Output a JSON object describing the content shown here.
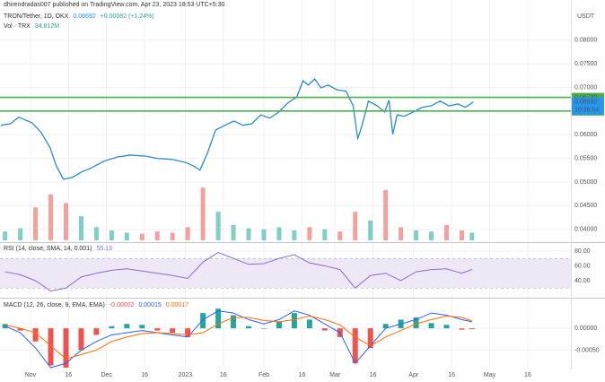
{
  "publisher": "dhirendradas007 published on TradingView.com, Apr 23, 2023 18:53 UTC+5:30",
  "chart_data": [
    {
      "type": "line",
      "title": "TRON/Tether, 1D, OKX",
      "currency": "USDT",
      "color": "#2a8bc7",
      "last": {
        "value": 0.06692,
        "label": "0.06692"
      },
      "change_label": "+0.00082 (+1.24%)",
      "countdown": "10:36:04",
      "x": [
        -11.7,
        -8,
        -4.6,
        0.7,
        4.2,
        7.8,
        10.2,
        13,
        16.6,
        20,
        23.7,
        29,
        34.3,
        39.6,
        45,
        50,
        55.5,
        60.8,
        64.3,
        66.8,
        69.6,
        73,
        76.7,
        80.2,
        83.7,
        87.2,
        90.8,
        94.3,
        97.9,
        101.4,
        105,
        107.4,
        109.5,
        112,
        114.5,
        117.3,
        120.8,
        124.4,
        127.2,
        129,
        130.7,
        133.2,
        136.7,
        139.6,
        141.3,
        142.8,
        144.5,
        147.3,
        150.9,
        154.4,
        157.9,
        161.5,
        165,
        168.5,
        171.4,
        174.6
      ],
      "values": [
        0.062,
        0.0623,
        0.0637,
        0.0625,
        0.0605,
        0.0572,
        0.0534,
        0.0506,
        0.051,
        0.0521,
        0.0529,
        0.0544,
        0.0553,
        0.0557,
        0.0555,
        0.055,
        0.0548,
        0.0542,
        0.0534,
        0.0525,
        0.0559,
        0.061,
        0.062,
        0.0629,
        0.062,
        0.0623,
        0.0642,
        0.0635,
        0.0648,
        0.0667,
        0.068,
        0.0714,
        0.0705,
        0.0718,
        0.0699,
        0.0705,
        0.0695,
        0.0692,
        0.0661,
        0.0591,
        0.062,
        0.0671,
        0.0661,
        0.0648,
        0.0673,
        0.0601,
        0.0642,
        0.0639,
        0.0648,
        0.0658,
        0.0661,
        0.0671,
        0.0661,
        0.0665,
        0.0658,
        0.06692
      ],
      "xlim": [
        -12,
        213
      ],
      "ylim": [
        0.0373,
        0.0862
      ],
      "yticks": [
        {
          "value": 0.08,
          "label": "0.08000"
        },
        {
          "value": 0.075,
          "label": "0.07500"
        },
        {
          "value": 0.07,
          "label": "0.07000"
        },
        {
          "value": 0.06,
          "label": "0.06000"
        },
        {
          "value": 0.055,
          "label": "0.05500"
        },
        {
          "value": 0.05,
          "label": "0.05000"
        },
        {
          "value": 0.045,
          "label": "0.04500"
        },
        {
          "value": 0.04,
          "label": "0.04000"
        }
      ],
      "hlines": [
        {
          "value": 0.0679,
          "label": "0.06790",
          "color": "#4caf50"
        },
        {
          "value": 0.065,
          "label": "0.06500",
          "color": "#4caf50"
        }
      ],
      "grid": true
    },
    {
      "type": "bar",
      "title": "Vol · TRX",
      "last_label": "34.812M",
      "up_color": "#7fcfc6",
      "down_color": "#f4a09c",
      "x": [
        -10,
        -4,
        2,
        8,
        14,
        20,
        26,
        32,
        38,
        44,
        50,
        56,
        62,
        68,
        74,
        80,
        86,
        92,
        98,
        104,
        110,
        116,
        122,
        128,
        134,
        140,
        146,
        152,
        158,
        164,
        170,
        174
      ],
      "values": [
        40,
        55,
        150,
        210,
        170,
        110,
        60,
        45,
        35,
        30,
        40,
        35,
        60,
        240,
        130,
        70,
        55,
        50,
        60,
        45,
        60,
        50,
        40,
        130,
        90,
        230,
        60,
        45,
        40,
        70,
        45,
        34.812
      ],
      "xlim": [
        -12,
        213
      ],
      "ylim": [
        0,
        360
      ]
    },
    {
      "type": "line",
      "title": "RSI (14, close, SMA, 14, 0.001)",
      "color": "#8e6cc9",
      "band": [
        30,
        70
      ],
      "band_color": "#ede7f6",
      "x": [
        -10,
        -4,
        2,
        8,
        14,
        20,
        26,
        32,
        38,
        44,
        50,
        56,
        62,
        68,
        74,
        80,
        86,
        92,
        98,
        104,
        110,
        116,
        122,
        128,
        134,
        140,
        146,
        152,
        158,
        164,
        170,
        174
      ],
      "values": [
        52,
        48,
        40,
        26,
        30,
        45,
        50,
        54,
        56,
        53,
        50,
        47,
        43,
        65,
        78,
        70,
        62,
        63,
        70,
        75,
        64,
        60,
        55,
        30,
        47,
        50,
        40,
        52,
        55,
        56,
        50,
        55.13
      ],
      "xlim": [
        -12,
        213
      ],
      "ylim": [
        17,
        92
      ],
      "yticks": [
        {
          "value": 80,
          "label": "80.00"
        },
        {
          "value": 60,
          "label": "60.00"
        },
        {
          "value": 40,
          "label": "40.00"
        }
      ]
    },
    {
      "type": "macd",
      "title": "MACD (12, 26, close, 9, EMA, EMA)",
      "pos_color": "#26a69a",
      "neg_color": "#ef5350",
      "x": [
        -10,
        -4,
        2,
        8,
        14,
        20,
        26,
        32,
        38,
        44,
        50,
        56,
        62,
        68,
        74,
        80,
        86,
        92,
        98,
        104,
        110,
        116,
        122,
        128,
        134,
        140,
        146,
        152,
        158,
        164,
        170,
        174
      ],
      "values": [
        0.0001,
        -5e-05,
        -0.0003,
        -0.00085,
        -0.0009,
        -0.0005,
        -0.00015,
        5e-05,
        0.0001,
        8e-05,
        -5e-05,
        -0.0001,
        -0.0002,
        0.00035,
        0.00045,
        0.0003,
        5e-05,
        0,
        0.00015,
        0.00035,
        0.0002,
        -5e-05,
        -0.0002,
        -0.0008,
        -0.00045,
        0.0001,
        0.0002,
        0.00025,
        0.00012,
        8e-05,
        -3e-05,
        -2e-05
      ],
      "series": [
        {
          "color": "#2962ff",
          "values": [
            5e-05,
            -0.0001,
            -0.00045,
            -0.0009,
            -0.0008,
            -0.0005,
            -0.0003,
            -0.00015,
            -0.0001,
            -5e-05,
            -0.0001,
            -0.00015,
            -0.0002,
            0.0002,
            0.0004,
            0.00035,
            0.0002,
            0.0001,
            0.0002,
            0.0004,
            0.0003,
            0.0001,
            -0.0001,
            -0.0008,
            -0.0004,
            0,
            0.0001,
            0.0002,
            0.00035,
            0.0003,
            0.0002,
            0.00015
          ]
        },
        {
          "color": "#ff6d00",
          "values": [
            8e-05,
            0,
            -0.0001,
            -0.0004,
            -0.0007,
            -0.0006,
            -0.0005,
            -0.0003,
            -0.0002,
            -0.00012,
            -0.0001,
            -0.00012,
            -0.00015,
            -0.0001,
            0.0001,
            0.00025,
            0.00025,
            0.00018,
            0.00015,
            0.0002,
            0.00028,
            0.0002,
            8e-05,
            -0.0002,
            -0.0004,
            -0.0002,
            -5e-05,
            0.0001,
            0.0002,
            0.00028,
            0.00025,
            0.00017
          ]
        }
      ],
      "xlim": [
        -12,
        213
      ],
      "ylim": [
        -0.0009,
        0.00066
      ],
      "yticks": [
        {
          "value": 0,
          "label": "0.00000"
        },
        {
          "value": -0.0005,
          "label": "-0.00050"
        }
      ],
      "xticks": [
        {
          "value": 0,
          "label": "Nov"
        },
        {
          "value": 15,
          "label": "16"
        },
        {
          "value": 30,
          "label": "Dec"
        },
        {
          "value": 45,
          "label": "16"
        },
        {
          "value": 61,
          "label": "2023"
        },
        {
          "value": 76,
          "label": "16"
        },
        {
          "value": 92,
          "label": "Feb"
        },
        {
          "value": 107,
          "label": "16"
        },
        {
          "value": 120,
          "label": "Mar"
        },
        {
          "value": 135,
          "label": "16"
        },
        {
          "value": 151,
          "label": "Apr"
        },
        {
          "value": 166,
          "label": "16"
        },
        {
          "value": 181,
          "label": "May"
        },
        {
          "value": 196,
          "label": "16"
        }
      ]
    }
  ]
}
